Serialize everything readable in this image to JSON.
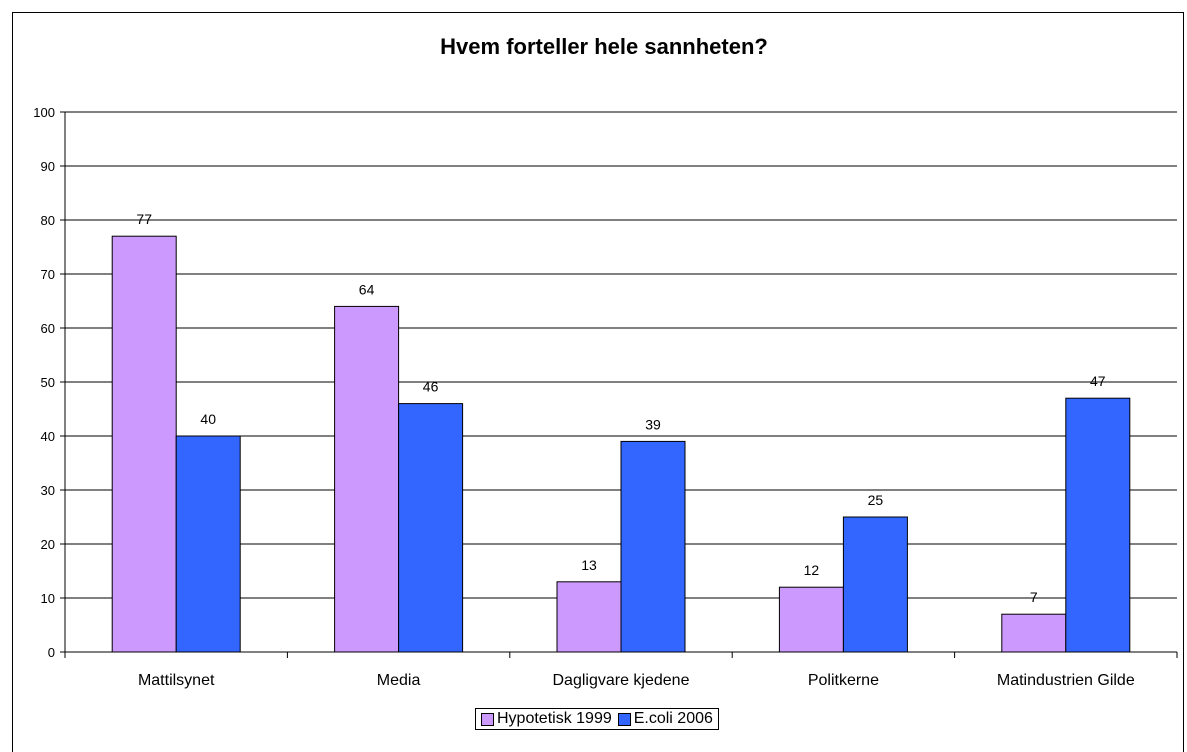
{
  "chart_data": {
    "type": "bar",
    "title": "Hvem forteller hele sannheten?",
    "categories": [
      "Mattilsynet",
      "Media",
      "Dagligvare kjedene",
      "Politkerne",
      "Matindustrien Gilde"
    ],
    "series": [
      {
        "name": "Hypotetisk 1999",
        "values": [
          77,
          64,
          13,
          12,
          7
        ],
        "color": "#cc99ff"
      },
      {
        "name": "E.coli 2006",
        "values": [
          40,
          46,
          39,
          25,
          47
        ],
        "color": "#3366ff"
      }
    ],
    "ylim": [
      0,
      100
    ],
    "yticks": [
      0,
      10,
      20,
      30,
      40,
      50,
      60,
      70,
      80,
      90,
      100
    ],
    "xlabel": "",
    "ylabel": "",
    "grid": true,
    "legend_position": "bottom"
  }
}
